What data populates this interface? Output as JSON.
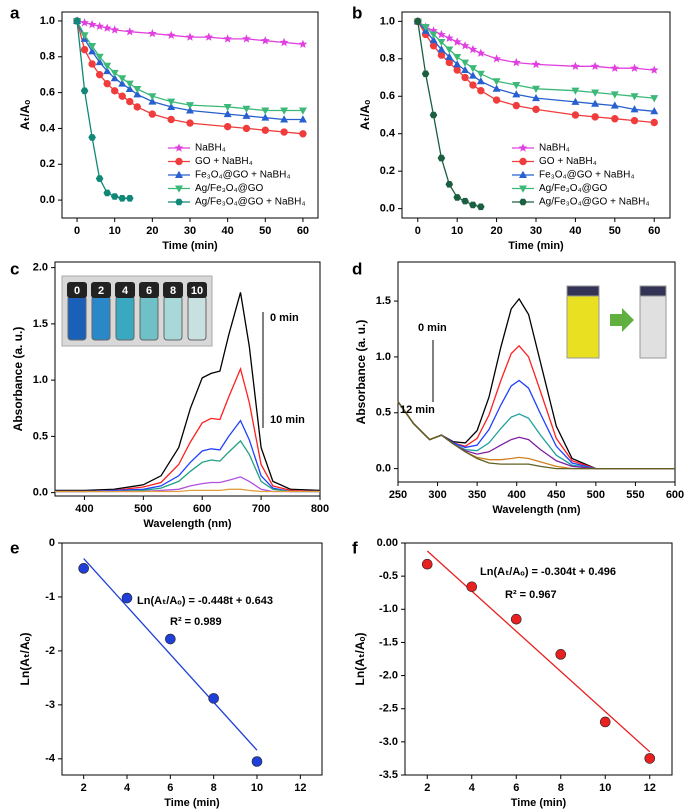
{
  "chart_data": [
    {
      "type": "line",
      "panel": "a",
      "x_label": "Time (min)",
      "y_label": "Aₜ/Aₒ",
      "xlim": [
        -4,
        64
      ],
      "ylim": [
        -0.1,
        1.05
      ],
      "xticks": [
        0,
        10,
        20,
        30,
        40,
        50,
        60
      ],
      "yticks": [
        {
          "value": 0,
          "label": "0.0"
        },
        0.2,
        0.4,
        0.6,
        0.8,
        {
          "value": 1,
          "label": "1.0"
        }
      ],
      "legend": "lower right",
      "series": [
        {
          "name": "NaBH₄",
          "color": "#e040e0",
          "marker": "star",
          "x": [
            0,
            2,
            4,
            6,
            8,
            10,
            14,
            20,
            25,
            30,
            35,
            40,
            45,
            50,
            55,
            60
          ],
          "values": [
            1.0,
            0.99,
            0.98,
            0.97,
            0.96,
            0.95,
            0.94,
            0.93,
            0.92,
            0.91,
            0.91,
            0.9,
            0.9,
            0.89,
            0.88,
            0.87
          ]
        },
        {
          "name": "GO + NaBH₄",
          "color": "#f03c3c",
          "marker": "circle",
          "x": [
            0,
            2,
            4,
            6,
            8,
            10,
            12,
            14,
            16,
            20,
            25,
            30,
            40,
            45,
            50,
            55,
            60
          ],
          "values": [
            1.0,
            0.84,
            0.76,
            0.7,
            0.65,
            0.61,
            0.58,
            0.55,
            0.52,
            0.48,
            0.45,
            0.43,
            0.41,
            0.4,
            0.39,
            0.38,
            0.37
          ]
        },
        {
          "name": "Fe₃O₄@GO + NaBH₄",
          "color": "#2860d0",
          "marker": "triangle-up",
          "x": [
            0,
            2,
            4,
            6,
            8,
            10,
            12,
            14,
            16,
            20,
            25,
            30,
            40,
            45,
            50,
            55,
            60
          ],
          "values": [
            1.0,
            0.9,
            0.83,
            0.77,
            0.72,
            0.68,
            0.65,
            0.62,
            0.59,
            0.55,
            0.52,
            0.5,
            0.48,
            0.47,
            0.46,
            0.45,
            0.45
          ]
        },
        {
          "name": "Ag/Fe₃O₄@GO",
          "color": "#3cb878",
          "marker": "triangle-down",
          "x": [
            0,
            2,
            4,
            6,
            8,
            10,
            12,
            14,
            16,
            20,
            25,
            30,
            40,
            45,
            50,
            55,
            60
          ],
          "values": [
            1.0,
            0.92,
            0.86,
            0.8,
            0.75,
            0.71,
            0.68,
            0.65,
            0.62,
            0.58,
            0.55,
            0.53,
            0.52,
            0.51,
            0.5,
            0.5,
            0.5
          ]
        },
        {
          "name": "Ag/Fe₃O₄@GO + NaBH₄",
          "color": "#108878",
          "marker": "hexagon",
          "x": [
            0,
            2,
            4,
            6,
            8,
            10,
            12,
            14
          ],
          "values": [
            1.0,
            0.61,
            0.35,
            0.12,
            0.04,
            0.02,
            0.01,
            0.01
          ]
        }
      ]
    },
    {
      "type": "line",
      "panel": "b",
      "x_label": "Time (min)",
      "y_label": "Aₜ/Aₒ",
      "xlim": [
        -4,
        64
      ],
      "ylim": [
        -0.05,
        1.05
      ],
      "xticks": [
        0,
        10,
        20,
        30,
        40,
        50,
        60
      ],
      "yticks": [
        {
          "value": 0,
          "label": "0.0"
        },
        0.2,
        0.4,
        0.6,
        0.8,
        {
          "value": 1,
          "label": "1.0"
        }
      ],
      "legend": "lower right",
      "series": [
        {
          "name": "NaBH₄",
          "color": "#e040e0",
          "marker": "star",
          "x": [
            0,
            2,
            4,
            6,
            8,
            10,
            12,
            14,
            16,
            20,
            25,
            30,
            40,
            45,
            50,
            55,
            60
          ],
          "values": [
            1.0,
            0.97,
            0.95,
            0.93,
            0.91,
            0.89,
            0.87,
            0.85,
            0.83,
            0.8,
            0.78,
            0.77,
            0.76,
            0.76,
            0.75,
            0.75,
            0.74
          ]
        },
        {
          "name": "GO + NaBH₄",
          "color": "#f03c3c",
          "marker": "circle",
          "x": [
            0,
            2,
            4,
            6,
            8,
            10,
            12,
            14,
            16,
            20,
            25,
            30,
            40,
            45,
            50,
            55,
            60
          ],
          "values": [
            1.0,
            0.93,
            0.87,
            0.82,
            0.78,
            0.74,
            0.7,
            0.66,
            0.63,
            0.58,
            0.55,
            0.53,
            0.5,
            0.49,
            0.48,
            0.47,
            0.46
          ]
        },
        {
          "name": "Fe₃O₄@GO + NaBH₄",
          "color": "#2860d0",
          "marker": "triangle-up",
          "x": [
            0,
            2,
            4,
            6,
            8,
            10,
            12,
            14,
            16,
            20,
            25,
            30,
            40,
            45,
            50,
            55,
            60
          ],
          "values": [
            1.0,
            0.95,
            0.9,
            0.85,
            0.81,
            0.77,
            0.74,
            0.71,
            0.68,
            0.64,
            0.61,
            0.59,
            0.57,
            0.56,
            0.55,
            0.53,
            0.52
          ]
        },
        {
          "name": "Ag/Fe₃O₄@GO",
          "color": "#3cb878",
          "marker": "triangle-down",
          "x": [
            0,
            2,
            4,
            6,
            8,
            10,
            12,
            14,
            16,
            20,
            25,
            30,
            40,
            45,
            50,
            55,
            60
          ],
          "values": [
            1.0,
            0.97,
            0.93,
            0.89,
            0.85,
            0.81,
            0.78,
            0.75,
            0.72,
            0.68,
            0.66,
            0.64,
            0.63,
            0.62,
            0.61,
            0.6,
            0.59
          ]
        },
        {
          "name": "Ag/Fe₃O₄@GO + NaBH₄",
          "color": "#1a6040",
          "marker": "hexagon",
          "x": [
            0,
            2,
            4,
            6,
            8,
            10,
            12,
            14,
            16
          ],
          "values": [
            1.0,
            0.72,
            0.5,
            0.27,
            0.13,
            0.06,
            0.04,
            0.02,
            0.01
          ]
        }
      ]
    },
    {
      "type": "line",
      "panel": "c",
      "x_label": "Wavelength (nm)",
      "y_label": "Absorbance (a. u.)",
      "xlim": [
        350,
        800
      ],
      "ylim": [
        -0.03,
        2.05
      ],
      "xticks": [
        400,
        500,
        600,
        700,
        800
      ],
      "yticks": [
        {
          "value": 0,
          "label": "0.0"
        },
        0.5,
        {
          "value": 1,
          "label": "1.0"
        },
        1.5,
        {
          "value": 2,
          "label": "2.0"
        }
      ],
      "annotations": [
        "0  min",
        "10 min"
      ],
      "inset_labels": [
        "0",
        "2",
        "4",
        "6",
        "8",
        "10"
      ],
      "x": [
        350,
        400,
        450,
        500,
        530,
        560,
        580,
        600,
        615,
        630,
        645,
        665,
        680,
        700,
        720,
        750,
        800
      ],
      "series": [
        {
          "color": "#000000",
          "values": [
            0.02,
            0.02,
            0.03,
            0.07,
            0.15,
            0.4,
            0.75,
            1.02,
            1.06,
            1.08,
            1.4,
            1.78,
            1.3,
            0.4,
            0.1,
            0.03,
            0.02
          ]
        },
        {
          "color": "#ff2020",
          "values": [
            0.01,
            0.01,
            0.02,
            0.05,
            0.09,
            0.25,
            0.45,
            0.62,
            0.66,
            0.65,
            0.85,
            1.1,
            0.8,
            0.25,
            0.06,
            0.02,
            0.01
          ]
        },
        {
          "color": "#2040ff",
          "values": [
            0.01,
            0.01,
            0.02,
            0.03,
            0.06,
            0.15,
            0.27,
            0.37,
            0.39,
            0.38,
            0.5,
            0.64,
            0.47,
            0.15,
            0.04,
            0.01,
            0.01
          ]
        },
        {
          "color": "#20a080",
          "values": [
            0.01,
            0.01,
            0.01,
            0.02,
            0.04,
            0.1,
            0.19,
            0.27,
            0.29,
            0.28,
            0.36,
            0.46,
            0.34,
            0.1,
            0.03,
            0.01,
            0.01
          ]
        },
        {
          "color": "#b050e0",
          "values": [
            0.01,
            0.01,
            0.01,
            0.01,
            0.02,
            0.03,
            0.06,
            0.08,
            0.09,
            0.09,
            0.11,
            0.14,
            0.1,
            0.03,
            0.01,
            0.01,
            0.01
          ]
        },
        {
          "color": "#e0a040",
          "values": [
            0.01,
            0.01,
            0.01,
            0.01,
            0.01,
            0.01,
            0.02,
            0.02,
            0.02,
            0.02,
            0.03,
            0.03,
            0.02,
            0.01,
            0.01,
            0.01,
            0.01
          ]
        }
      ]
    },
    {
      "type": "line",
      "panel": "d",
      "x_label": "Wavelength (nm)",
      "y_label": "Absorbance (a. u.)",
      "xlim": [
        250,
        600
      ],
      "ylim": [
        -0.12,
        1.85
      ],
      "xticks": [
        250,
        300,
        350,
        400,
        450,
        500,
        550,
        600
      ],
      "yticks": [
        {
          "value": 0,
          "label": "0.0"
        },
        0.5,
        {
          "value": 1,
          "label": "1.0"
        },
        1.5
      ],
      "annotations": [
        "0 min",
        "12 min"
      ],
      "x": [
        250,
        270,
        290,
        305,
        320,
        335,
        350,
        365,
        380,
        393,
        403,
        415,
        430,
        450,
        470,
        500,
        550,
        600
      ],
      "series": [
        {
          "color": "#000000",
          "values": [
            0.6,
            0.4,
            0.26,
            0.3,
            0.24,
            0.23,
            0.34,
            0.64,
            1.09,
            1.43,
            1.52,
            1.38,
            0.95,
            0.38,
            0.09,
            0,
            0,
            0
          ]
        },
        {
          "color": "#ff2020",
          "values": [
            0.6,
            0.4,
            0.26,
            0.3,
            0.23,
            0.2,
            0.27,
            0.48,
            0.79,
            1.03,
            1.1,
            1.0,
            0.69,
            0.27,
            0.07,
            0,
            0,
            0
          ]
        },
        {
          "color": "#2040ff",
          "values": [
            0.6,
            0.4,
            0.26,
            0.3,
            0.23,
            0.19,
            0.21,
            0.35,
            0.57,
            0.74,
            0.79,
            0.72,
            0.49,
            0.2,
            0.05,
            0,
            0,
            0
          ]
        },
        {
          "color": "#20a0a0",
          "values": [
            0.6,
            0.4,
            0.26,
            0.3,
            0.22,
            0.17,
            0.16,
            0.23,
            0.36,
            0.46,
            0.49,
            0.45,
            0.3,
            0.12,
            0.03,
            0,
            0,
            0
          ]
        },
        {
          "color": "#8020a0",
          "values": [
            0.6,
            0.4,
            0.26,
            0.3,
            0.22,
            0.16,
            0.13,
            0.15,
            0.21,
            0.26,
            0.28,
            0.26,
            0.17,
            0.07,
            0.02,
            0,
            0,
            0
          ]
        },
        {
          "color": "#d08020",
          "values": [
            0.6,
            0.4,
            0.26,
            0.3,
            0.22,
            0.15,
            0.1,
            0.08,
            0.08,
            0.09,
            0.1,
            0.09,
            0.06,
            0.02,
            0,
            0,
            0,
            0
          ]
        },
        {
          "color": "#606020",
          "values": [
            0.6,
            0.4,
            0.26,
            0.3,
            0.22,
            0.15,
            0.09,
            0.05,
            0.04,
            0.04,
            0.04,
            0.04,
            0.02,
            0,
            0,
            0,
            0,
            0
          ]
        }
      ]
    },
    {
      "type": "scatter",
      "panel": "e",
      "x_label": "Time (min)",
      "y_label": "Ln(Aₜ/Aₒ)",
      "xlim": [
        1,
        13
      ],
      "ylim": [
        -4.3,
        0
      ],
      "xticks": [
        2,
        4,
        6,
        8,
        10,
        12
      ],
      "yticks": [
        0,
        -1,
        -2,
        -3,
        -4
      ],
      "annotations": [
        "Ln(Aₜ/Aₒ) = -0.448t + 0.643",
        "R² = 0.989"
      ],
      "series": [
        {
          "color": "#1f3fd8",
          "marker": "circle",
          "x": [
            2,
            4,
            6,
            8,
            10
          ],
          "values": [
            -0.47,
            -1.02,
            -1.78,
            -2.88,
            -4.05
          ]
        }
      ],
      "fit_line": {
        "color": "#1f3fd8",
        "x": [
          2,
          10
        ],
        "values": [
          -0.29,
          -3.84
        ]
      }
    },
    {
      "type": "scatter",
      "panel": "f",
      "x_label": "Time (min)",
      "y_label": "Ln(Aₜ/Aₒ)",
      "xlim": [
        1,
        13
      ],
      "ylim": [
        -3.5,
        0
      ],
      "xticks": [
        2,
        4,
        6,
        8,
        10,
        12
      ],
      "yticks": [
        {
          "value": 0,
          "label": "0.00"
        },
        -0.5,
        {
          "value": -1,
          "label": "-1.0"
        },
        -1.5,
        {
          "value": -2,
          "label": "-2.0"
        },
        -2.5,
        {
          "value": -3,
          "label": "-3.0"
        },
        -3.5
      ],
      "annotations": [
        "Ln(Aₜ/Aₒ) = -0.304t + 0.496",
        "R² = 0.967"
      ],
      "series": [
        {
          "color": "#e82020",
          "marker": "circle",
          "x": [
            2,
            4,
            6,
            8,
            10,
            12
          ],
          "values": [
            -0.32,
            -0.66,
            -1.15,
            -1.68,
            -2.7,
            -3.25
          ]
        }
      ],
      "fit_line": {
        "color": "#e82020",
        "x": [
          2,
          12
        ],
        "values": [
          -0.12,
          -3.15
        ]
      }
    }
  ]
}
